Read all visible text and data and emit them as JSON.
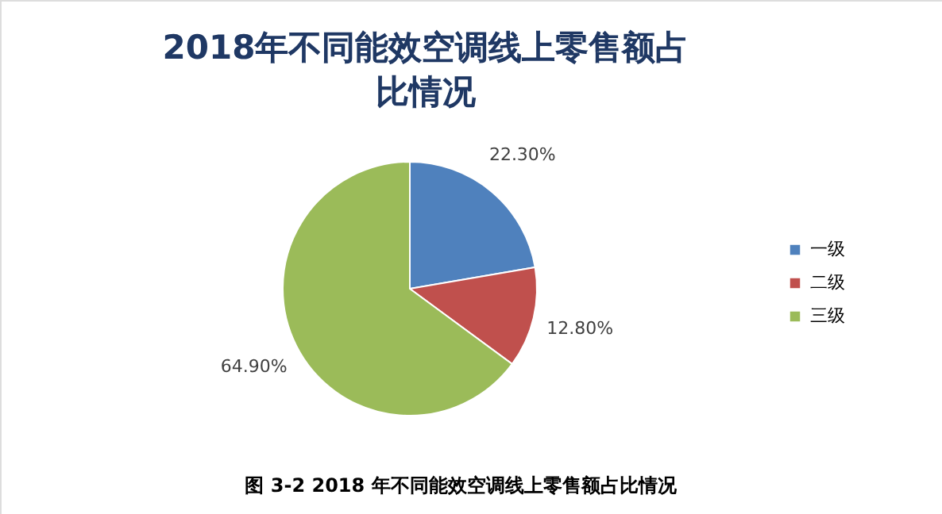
{
  "chart_data": {
    "type": "pie",
    "title": "2018年不同能效空调线上零售额占比情况",
    "categories": [
      "一级",
      "二级",
      "三级"
    ],
    "values": [
      22.3,
      12.8,
      64.9
    ],
    "value_labels": [
      "22.30%",
      "12.80%",
      "64.90%"
    ],
    "colors": [
      "#4f81bd",
      "#c0504d",
      "#9bbb59"
    ],
    "legend": "right",
    "annotations": [
      "图 3-2 2018 年不同能效空调线上零售额占比情况"
    ]
  }
}
